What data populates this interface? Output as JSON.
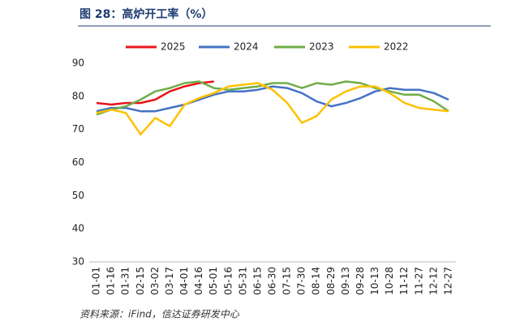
{
  "chart_data": {
    "type": "line",
    "title": "图 28：高炉开工率（%）",
    "source": "资料来源：iFind，信达证券研发中心",
    "categories": [
      "01-01",
      "01-16",
      "01-31",
      "02-15",
      "03-02",
      "03-17",
      "04-01",
      "04-16",
      "05-01",
      "05-16",
      "05-31",
      "06-15",
      "06-30",
      "07-15",
      "07-30",
      "08-14",
      "08-29",
      "09-13",
      "09-28",
      "10-13",
      "10-28",
      "11-12",
      "11-27",
      "12-12",
      "12-27"
    ],
    "series": [
      {
        "name": "2025",
        "color": "#e8141a",
        "values": [
          78,
          77.5,
          78,
          78,
          79,
          81.5,
          83,
          84,
          84.5,
          null,
          null,
          null,
          null,
          null,
          null,
          null,
          null,
          null,
          null,
          null,
          null,
          null,
          null,
          null,
          null
        ]
      },
      {
        "name": "2024",
        "color": "#4472c4",
        "values": [
          75.5,
          76.5,
          76.5,
          75.5,
          75.5,
          76.5,
          77.5,
          79,
          80.5,
          81.5,
          81.5,
          82,
          83,
          82.5,
          81,
          78.5,
          77,
          78,
          79.5,
          81.5,
          82.5,
          82,
          82,
          81,
          79
        ]
      },
      {
        "name": "2023",
        "color": "#70ad47",
        "values": [
          74.5,
          76,
          77,
          79,
          81.5,
          82.5,
          84,
          84.5,
          82.5,
          82,
          82.5,
          83,
          84,
          84,
          82.5,
          84,
          83.5,
          84.5,
          84,
          82.5,
          81.5,
          80.5,
          80.5,
          78.5,
          75.5
        ]
      },
      {
        "name": "2022",
        "color": "#ffc000",
        "values": [
          75,
          76,
          75,
          68.5,
          73.5,
          71,
          77.5,
          79.5,
          81,
          83,
          83.5,
          84,
          82,
          78,
          72,
          74,
          79,
          81.5,
          83,
          83,
          81,
          78,
          76.5,
          76,
          75.5
        ]
      }
    ],
    "ylim": [
      30,
      90
    ],
    "yticks": [
      30,
      40,
      50,
      60,
      70,
      80,
      90
    ],
    "grid": false
  }
}
